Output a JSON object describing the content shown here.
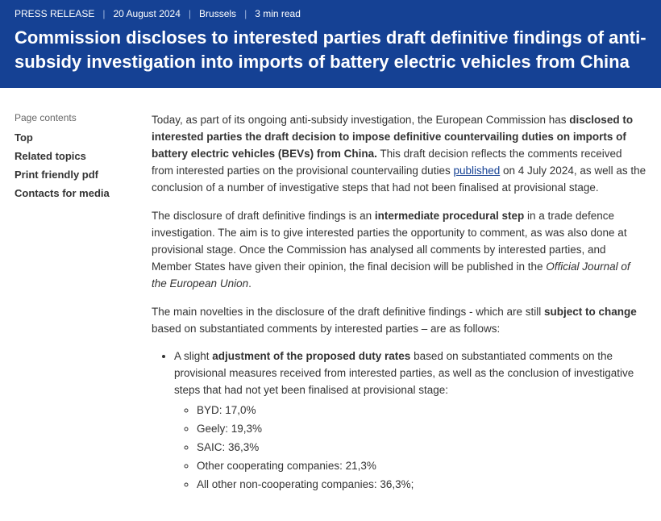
{
  "hero": {
    "meta": {
      "type": "PRESS RELEASE",
      "date": "20 August 2024",
      "location": "Brussels",
      "readtime": "3 min read"
    },
    "title": "Commission discloses to interested parties draft definitive findings of anti-subsidy investigation into imports of battery electric vehicles from China"
  },
  "sidebar": {
    "title": "Page contents",
    "items": [
      "Top",
      "Related topics",
      "Print friendly pdf",
      "Contacts for media"
    ]
  },
  "body": {
    "p1_a": "Today, as part of its ongoing anti-subsidy investigation, the European Commission has ",
    "p1_b": "disclosed to interested parties the draft decision to impose definitive countervailing duties on imports of battery electric vehicles (BEVs) from China.",
    "p1_c": " This draft decision reflects the comments received from interested parties on the provisional countervailing duties ",
    "p1_link": "published",
    "p1_d": " on 4 July 2024, as well as the conclusion of a number of investigative steps that had not been finalised at provisional stage.",
    "p2_a": "The disclosure of draft definitive findings is an ",
    "p2_b": "intermediate procedural step",
    "p2_c": " in a trade defence investigation. The aim is to give interested parties the opportunity to comment, as was also done at provisional stage. Once the Commission has analysed all comments by interested parties, and Member States have given their opinion, the final decision will be published in the ",
    "p2_em": "Official Journal of the European Union",
    "p2_d": ".",
    "p3_a": "The main novelties in the disclosure of the draft definitive findings - which are still ",
    "p3_b": "subject to change",
    "p3_c": " based on substantiated comments by interested parties – are as follows:",
    "li1_a": "A slight ",
    "li1_b": "adjustment of the proposed duty rates",
    "li1_c": " based on substantiated comments on the provisional measures received from interested parties, as well as the conclusion of investigative steps that had not yet been finalised at provisional stage:",
    "rates": [
      "BYD: 17,0%",
      "Geely: 19,3%",
      "SAIC: 36,3%",
      "Other cooperating companies: 21,3%",
      "All other non-cooperating companies: 36,3%;"
    ]
  }
}
